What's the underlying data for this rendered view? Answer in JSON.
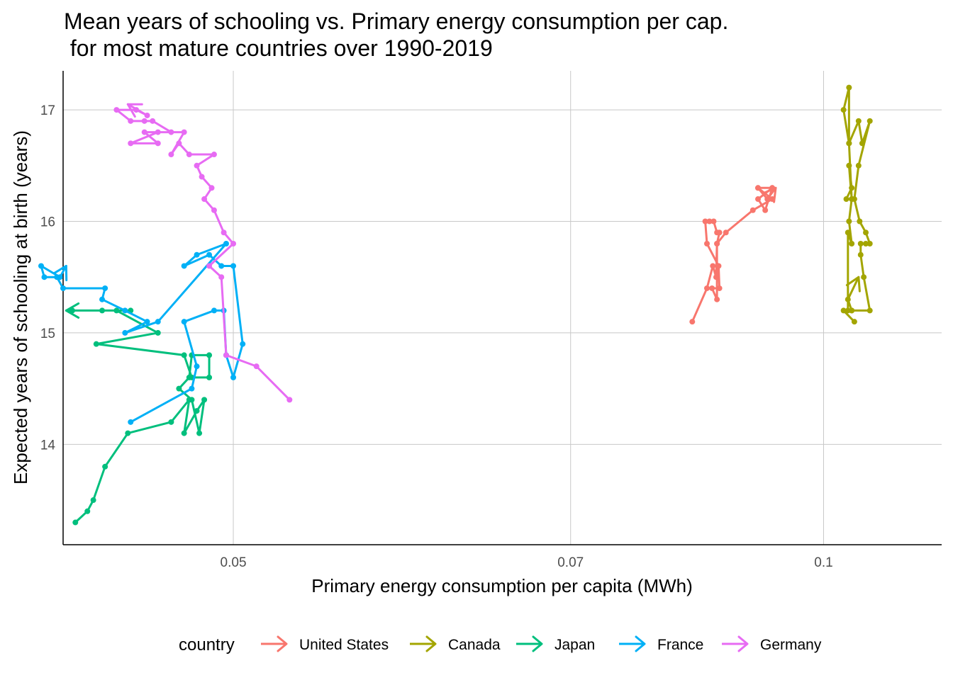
{
  "chart_data": {
    "type": "line",
    "title_lines": [
      "Mean years of schooling vs. Primary energy consumption per cap.",
      " for most mature countries over 1990-2019"
    ],
    "xlabel": "Primary energy consumption per capita (MWh)",
    "ylabel": "Expected years of schooling at birth (years)",
    "x_scale": "reciprocal",
    "x_ticks": [
      0.05,
      0.07,
      0.1
    ],
    "x_tick_labels": [
      "0.05",
      "0.07",
      "0.1"
    ],
    "xlim": [
      0.0437,
      0.125
    ],
    "y_ticks": [
      14,
      15,
      16,
      17
    ],
    "y_tick_labels": [
      "14",
      "15",
      "16",
      "17"
    ],
    "ylim": [
      13.1,
      17.35
    ],
    "grid": true,
    "legend_title": "country",
    "legend_position": "bottom",
    "series": [
      {
        "name": "United States",
        "color": "#F8766D",
        "points": [
          [
            0.0818,
            15.1
          ],
          [
            0.0835,
            15.4
          ],
          [
            0.0842,
            15.6
          ],
          [
            0.0846,
            15.5
          ],
          [
            0.0847,
            15.8
          ],
          [
            0.085,
            15.9
          ],
          [
            0.0847,
            15.9
          ],
          [
            0.0843,
            16.0
          ],
          [
            0.0838,
            16.0
          ],
          [
            0.0833,
            16.0
          ],
          [
            0.0835,
            15.8
          ],
          [
            0.0849,
            15.6
          ],
          [
            0.085,
            15.4
          ],
          [
            0.0841,
            15.4
          ],
          [
            0.0847,
            15.3
          ],
          [
            0.0847,
            15.8
          ],
          [
            0.0858,
            15.9
          ],
          [
            0.0893,
            16.1
          ],
          [
            0.092,
            16.2
          ],
          [
            0.09,
            16.3
          ],
          [
            0.092,
            16.3
          ],
          [
            0.091,
            16.1
          ],
          [
            0.09,
            16.2
          ],
          [
            0.092,
            16.3
          ],
          [
            0.09,
            16.3
          ],
          [
            0.0913,
            16.2
          ],
          [
            0.0925,
            16.3
          ]
        ]
      },
      {
        "name": "Canada",
        "color": "#A3A500",
        "points": [
          [
            0.1055,
            15.1
          ],
          [
            0.1035,
            15.2
          ],
          [
            0.105,
            15.2
          ],
          [
            0.1085,
            15.2
          ],
          [
            0.1073,
            15.5
          ],
          [
            0.1067,
            15.7
          ],
          [
            0.1067,
            15.8
          ],
          [
            0.1077,
            15.8
          ],
          [
            0.1085,
            15.8
          ],
          [
            0.1077,
            15.9
          ],
          [
            0.1065,
            16.0
          ],
          [
            0.1055,
            16.2
          ],
          [
            0.1063,
            16.5
          ],
          [
            0.1085,
            16.9
          ],
          [
            0.107,
            16.7
          ],
          [
            0.1063,
            16.9
          ],
          [
            0.1045,
            16.7
          ],
          [
            0.1045,
            17.2
          ],
          [
            0.1035,
            17.0
          ],
          [
            0.1045,
            16.7
          ],
          [
            0.105,
            16.2
          ],
          [
            0.104,
            16.2
          ],
          [
            0.105,
            16.3
          ],
          [
            0.1045,
            16.5
          ],
          [
            0.105,
            16.2
          ],
          [
            0.1045,
            16.0
          ],
          [
            0.105,
            15.8
          ],
          [
            0.1043,
            15.9
          ],
          [
            0.1043,
            15.2
          ],
          [
            0.105,
            15.2
          ],
          [
            0.1043,
            15.3
          ],
          [
            0.1063,
            15.5
          ]
        ]
      },
      {
        "name": "Japan",
        "color": "#00BF7D",
        "points": [
          [
            0.0441,
            13.3
          ],
          [
            0.0445,
            13.4
          ],
          [
            0.0447,
            13.5
          ],
          [
            0.0451,
            13.8
          ],
          [
            0.0459,
            14.1
          ],
          [
            0.0475,
            14.2
          ],
          [
            0.0482,
            14.4
          ],
          [
            0.048,
            14.1
          ],
          [
            0.0485,
            14.3
          ],
          [
            0.0488,
            14.4
          ],
          [
            0.0486,
            14.1
          ],
          [
            0.0483,
            14.4
          ],
          [
            0.0478,
            14.5
          ],
          [
            0.0482,
            14.6
          ],
          [
            0.0483,
            14.8
          ],
          [
            0.049,
            14.8
          ],
          [
            0.049,
            14.6
          ],
          [
            0.0483,
            14.6
          ],
          [
            0.048,
            14.8
          ],
          [
            0.0448,
            14.9
          ],
          [
            0.047,
            15.0
          ],
          [
            0.0455,
            15.2
          ],
          [
            0.046,
            15.2
          ],
          [
            0.045,
            15.2
          ],
          [
            0.044,
            15.2
          ],
          [
            0.0438,
            15.2
          ]
        ]
      },
      {
        "name": "France",
        "color": "#00B0F6",
        "points": [
          [
            0.046,
            14.2
          ],
          [
            0.0483,
            14.5
          ],
          [
            0.0485,
            14.7
          ],
          [
            0.048,
            15.1
          ],
          [
            0.0492,
            15.2
          ],
          [
            0.0496,
            15.2
          ],
          [
            0.0497,
            14.8
          ],
          [
            0.05,
            14.6
          ],
          [
            0.0504,
            14.9
          ],
          [
            0.05,
            15.6
          ],
          [
            0.0495,
            15.6
          ],
          [
            0.049,
            15.7
          ],
          [
            0.048,
            15.6
          ],
          [
            0.0485,
            15.7
          ],
          [
            0.0497,
            15.8
          ],
          [
            0.047,
            15.1
          ],
          [
            0.0458,
            15.0
          ],
          [
            0.0466,
            15.1
          ],
          [
            0.0458,
            15.2
          ],
          [
            0.045,
            15.3
          ],
          [
            0.0451,
            15.4
          ],
          [
            0.0437,
            15.4
          ],
          [
            0.0435,
            15.5
          ],
          [
            0.0431,
            15.5
          ],
          [
            0.043,
            15.6
          ],
          [
            0.0436,
            15.5
          ],
          [
            0.0438,
            15.6
          ]
        ]
      },
      {
        "name": "Germany",
        "color": "#E76BF3",
        "points": [
          [
            0.0525,
            14.4
          ],
          [
            0.051,
            14.7
          ],
          [
            0.0497,
            14.8
          ],
          [
            0.0495,
            15.5
          ],
          [
            0.049,
            15.6
          ],
          [
            0.05,
            15.8
          ],
          [
            0.0496,
            15.9
          ],
          [
            0.0492,
            16.1
          ],
          [
            0.0488,
            16.2
          ],
          [
            0.0491,
            16.3
          ],
          [
            0.0487,
            16.4
          ],
          [
            0.0485,
            16.5
          ],
          [
            0.0492,
            16.6
          ],
          [
            0.0482,
            16.6
          ],
          [
            0.0478,
            16.7
          ],
          [
            0.0475,
            16.6
          ],
          [
            0.048,
            16.8
          ],
          [
            0.047,
            16.8
          ],
          [
            0.046,
            16.7
          ],
          [
            0.047,
            16.7
          ],
          [
            0.0465,
            16.8
          ],
          [
            0.0475,
            16.8
          ],
          [
            0.0468,
            16.9
          ],
          [
            0.0465,
            16.9
          ],
          [
            0.046,
            16.9
          ],
          [
            0.0455,
            17.0
          ],
          [
            0.0462,
            17.0
          ],
          [
            0.0466,
            16.95
          ],
          [
            0.0459,
            17.05
          ]
        ]
      }
    ]
  }
}
